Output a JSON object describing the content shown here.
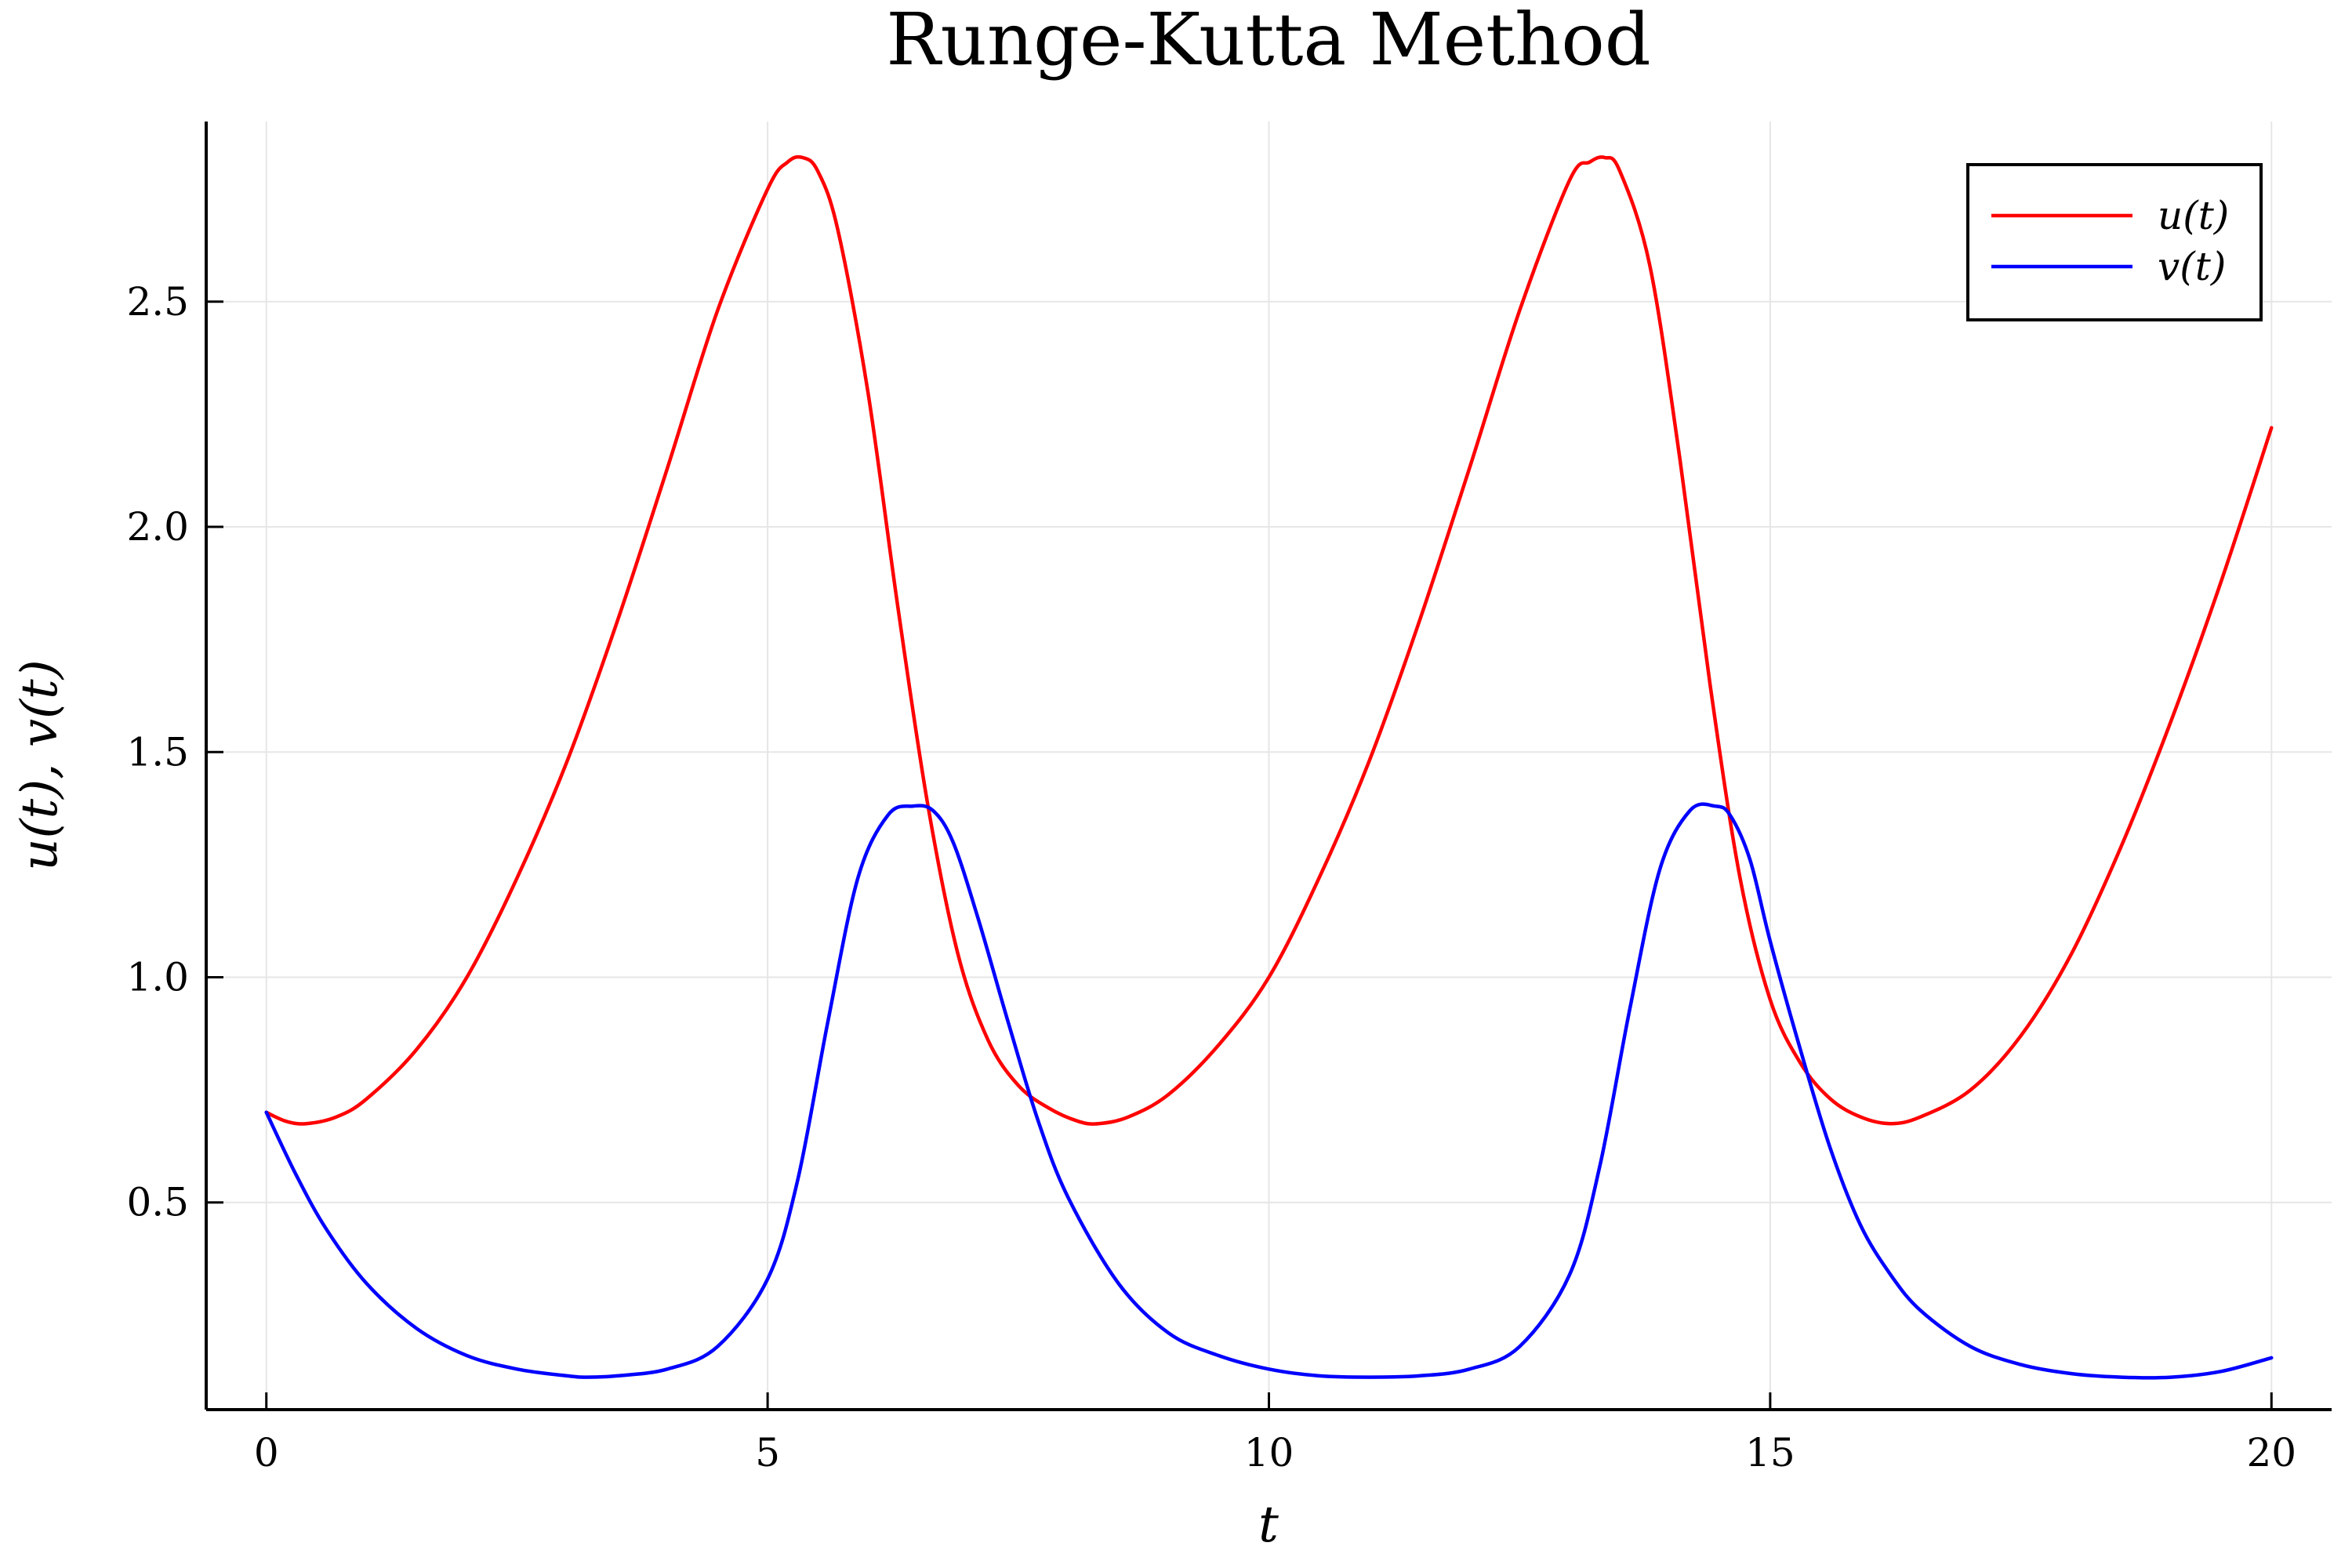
{
  "chart_data": {
    "type": "line",
    "title": "Runge-Kutta Method",
    "xlabel": "t",
    "ylabel": "u(t), v(t)",
    "xlim": [
      -0.6,
      20.6
    ],
    "ylim": [
      0.04,
      2.9
    ],
    "xticks": [
      0,
      5,
      10,
      15,
      20
    ],
    "xtick_labels": [
      "0",
      "5",
      "10",
      "15",
      "20"
    ],
    "yticks": [
      0.5,
      1.0,
      1.5,
      2.0,
      2.5
    ],
    "ytick_labels": [
      "0.5",
      "1.0",
      "1.5",
      "2.0",
      "2.5"
    ],
    "grid": true,
    "legend_position": "top-right",
    "series": [
      {
        "name": "u(t)",
        "color": "#ff0000",
        "x": [
          0,
          0.2,
          0.4,
          0.7,
          1.0,
          1.5,
          2.0,
          2.5,
          3.0,
          3.5,
          4.0,
          4.5,
          5.0,
          5.2,
          5.35,
          5.5,
          5.7,
          6.0,
          6.3,
          6.6,
          6.9,
          7.2,
          7.5,
          7.8,
          8.1,
          8.3,
          8.6,
          9.0,
          9.5,
          10.0,
          10.5,
          11.0,
          11.5,
          12.0,
          12.5,
          13.0,
          13.2,
          13.35,
          13.5,
          13.8,
          14.1,
          14.4,
          14.7,
          15.0,
          15.3,
          15.6,
          15.9,
          16.2,
          16.5,
          17.0,
          17.5,
          18.0,
          18.5,
          19.0,
          19.5,
          20.0
        ],
        "y": [
          0.7,
          0.68,
          0.675,
          0.69,
          0.73,
          0.84,
          1.0,
          1.22,
          1.48,
          1.79,
          2.13,
          2.48,
          2.75,
          2.81,
          2.82,
          2.79,
          2.66,
          2.3,
          1.82,
          1.38,
          1.05,
          0.86,
          0.76,
          0.71,
          0.68,
          0.675,
          0.69,
          0.74,
          0.85,
          1.0,
          1.22,
          1.48,
          1.79,
          2.13,
          2.48,
          2.77,
          2.81,
          2.82,
          2.79,
          2.58,
          2.15,
          1.65,
          1.22,
          0.95,
          0.81,
          0.73,
          0.69,
          0.675,
          0.69,
          0.75,
          0.87,
          1.05,
          1.29,
          1.57,
          1.88,
          2.22
        ]
      },
      {
        "name": "v(t)",
        "color": "#0000ff",
        "x": [
          0,
          0.3,
          0.6,
          1.0,
          1.5,
          2.0,
          2.5,
          3.0,
          3.2,
          3.5,
          4.0,
          4.5,
          5.0,
          5.3,
          5.6,
          5.9,
          6.2,
          6.45,
          6.65,
          6.85,
          7.1,
          7.4,
          7.7,
          8.0,
          8.5,
          9.0,
          9.5,
          10.0,
          10.5,
          11.0,
          11.5,
          12.0,
          12.5,
          13.0,
          13.3,
          13.6,
          13.9,
          14.2,
          14.45,
          14.6,
          14.8,
          15.0,
          15.3,
          15.6,
          15.9,
          16.2,
          16.5,
          17.0,
          17.5,
          18.0,
          18.5,
          19.0,
          19.5,
          20.0
        ],
        "y": [
          0.7,
          0.56,
          0.44,
          0.32,
          0.22,
          0.16,
          0.13,
          0.115,
          0.112,
          0.115,
          0.13,
          0.18,
          0.33,
          0.55,
          0.9,
          1.22,
          1.36,
          1.38,
          1.37,
          1.3,
          1.13,
          0.9,
          0.68,
          0.51,
          0.32,
          0.21,
          0.16,
          0.13,
          0.115,
          0.112,
          0.115,
          0.13,
          0.18,
          0.34,
          0.58,
          0.93,
          1.24,
          1.37,
          1.38,
          1.36,
          1.26,
          1.08,
          0.84,
          0.62,
          0.45,
          0.34,
          0.26,
          0.18,
          0.14,
          0.12,
          0.112,
          0.112,
          0.125,
          0.155
        ]
      }
    ]
  }
}
